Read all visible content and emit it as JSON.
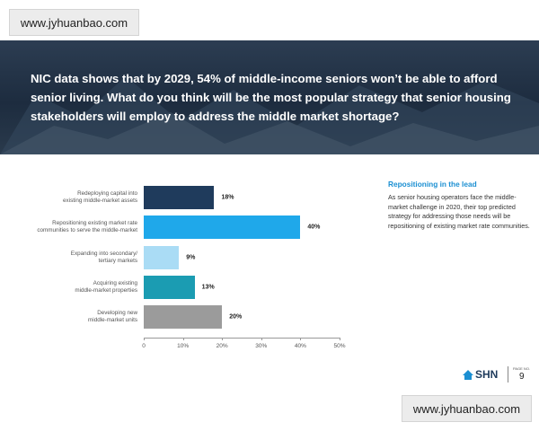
{
  "watermarks": [
    "www.jyhuanbao.com",
    "www.jyhuanbao.com"
  ],
  "banner": {
    "question": "NIC data shows that by 2029, 54% of middle-income seniors won’t be able to afford senior living. What do you think will be the most popular strategy that senior housing stakeholders will employ to address the middle market shortage?"
  },
  "sidebar": {
    "heading": "Repositioning in the lead",
    "body": "As senior housing operators face the middle-market challenge in 2020, their top predicted strategy for addressing those needs will be repositioning of existing market rate communities."
  },
  "footer": {
    "logo": "SHN",
    "page_label": "PAGE NO.",
    "page_number": "9"
  },
  "chart_data": {
    "type": "hbar",
    "categories": [
      "Redeploying capital into\nexisting middle-market assets",
      "Repositioning existing market rate\ncommunities to serve the middle-market",
      "Expanding into secondary/\ntertiary markets",
      "Acquiring existing\nmiddle-market properties",
      "Developing new\nmiddle-market units"
    ],
    "values": [
      18,
      40,
      9,
      13,
      20
    ],
    "value_labels": [
      "18%",
      "40%",
      "9%",
      "13%",
      "20%"
    ],
    "colors": [
      "#1f3b5c",
      "#1fa8ea",
      "#aadcf5",
      "#1b9cb2",
      "#9b9b9b"
    ],
    "xlim": [
      0,
      50
    ],
    "xticks": [
      0,
      {
        "value": 10,
        "label": "10%"
      },
      {
        "value": 20,
        "label": "20%"
      },
      {
        "value": 30,
        "label": "30%"
      },
      {
        "value": 40,
        "label": "40%"
      },
      {
        "value": 50,
        "label": "50%"
      }
    ]
  }
}
